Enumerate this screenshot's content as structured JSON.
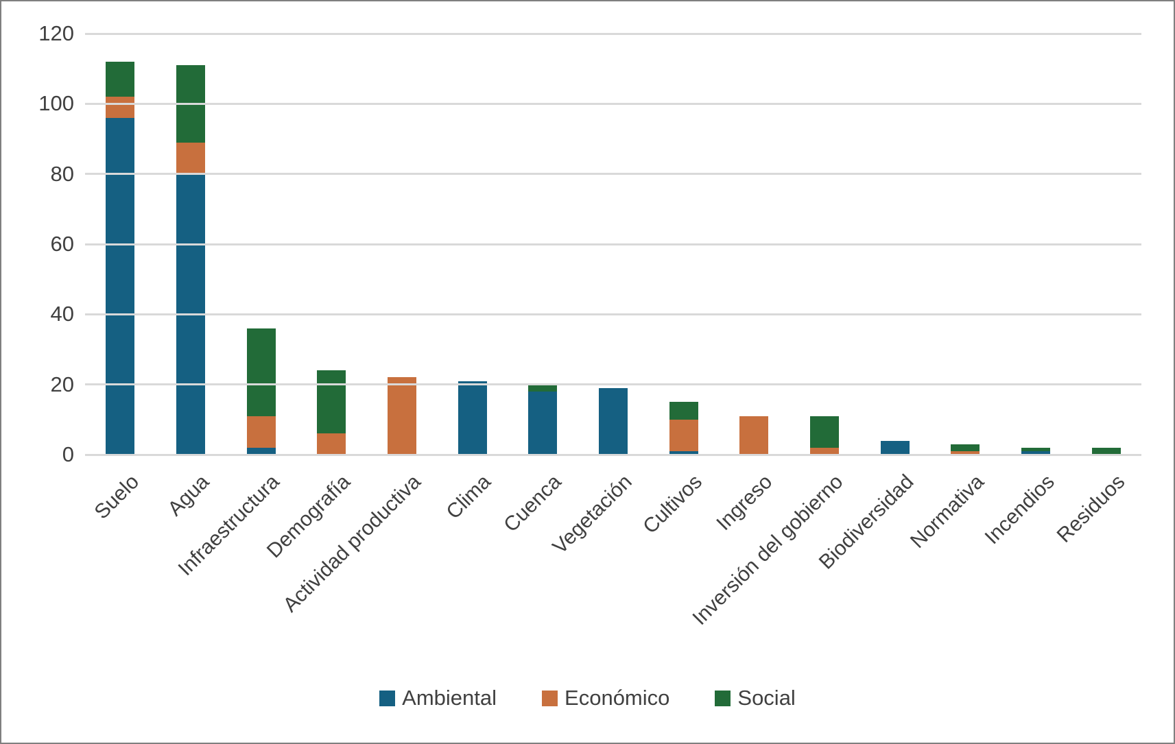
{
  "chart_data": {
    "type": "bar",
    "stacked": true,
    "title": "",
    "xlabel": "",
    "ylabel": "",
    "categories": [
      "Suelo",
      "Agua",
      "Infraestructura",
      "Demografía",
      "Actividad productiva",
      "Clima",
      "Cuenca",
      "Vegetación",
      "Cultivos",
      "Ingreso",
      "Inversión del gobierno",
      "Biodiversidad",
      "Normativa",
      "Incendios",
      "Residuos"
    ],
    "series": [
      {
        "name": "Ambiental",
        "color": "#156082",
        "values": [
          96,
          80,
          2,
          0,
          0,
          21,
          18,
          19,
          1,
          0,
          0,
          4,
          0,
          1,
          0
        ]
      },
      {
        "name": "Económico",
        "color": "#C8703E",
        "values": [
          6,
          9,
          9,
          6,
          22,
          0,
          0,
          0,
          9,
          11,
          2,
          0,
          1,
          0,
          0
        ]
      },
      {
        "name": "Social",
        "color": "#226B38",
        "values": [
          10,
          22,
          25,
          18,
          0,
          0,
          2,
          0,
          5,
          0,
          9,
          0,
          2,
          1,
          2
        ]
      }
    ],
    "totals": [
      112,
      111,
      36,
      24,
      22,
      21,
      20,
      19,
      15,
      11,
      11,
      4,
      3,
      2,
      2
    ],
    "ylim": [
      0,
      120
    ],
    "yticks": [
      0,
      20,
      40,
      60,
      80,
      100,
      120
    ],
    "grid": true,
    "legend_position": "bottom"
  },
  "colors": {
    "background": "#FFFFFF",
    "border": "#7F7F7F",
    "gridline": "#D9D9D9",
    "text": "#404040"
  }
}
